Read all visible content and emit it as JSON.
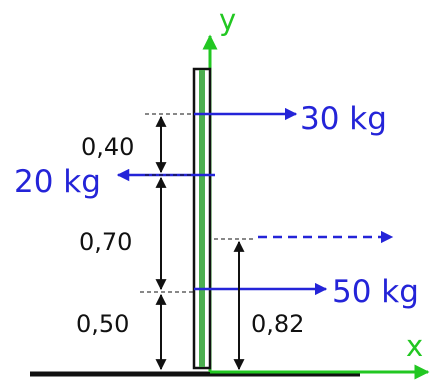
{
  "axes": {
    "x_label": "x",
    "y_label": "y"
  },
  "forces": [
    {
      "label": "30 kg",
      "direction": "right"
    },
    {
      "label": "20 kg",
      "direction": "left"
    },
    {
      "label": "50 kg",
      "direction": "right"
    }
  ],
  "resultant": {
    "style": "dashed",
    "direction": "right"
  },
  "dimensions": [
    {
      "label": "0,40"
    },
    {
      "label": "0,70"
    },
    {
      "label": "0,50"
    },
    {
      "label": "0,82"
    }
  ],
  "colors": {
    "force": "#2424d8",
    "axis": "#22c722",
    "beam_core": "#4caf50",
    "beam_outline": "#111111",
    "dimension": "#111111"
  }
}
